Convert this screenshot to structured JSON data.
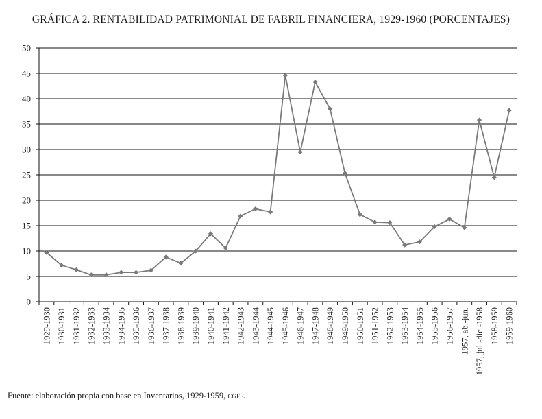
{
  "chart_data": {
    "type": "line",
    "title": "GRÁFICA 2. RENTABILIDAD PATRIMONIAL DE FABRIL FINANCIERA, 1929-1960 (PORCENTAJES)",
    "xlabel": "",
    "ylabel": "",
    "ylim": [
      0,
      50
    ],
    "yticks": [
      0,
      5,
      10,
      15,
      20,
      25,
      30,
      35,
      40,
      45,
      50
    ],
    "grid": true,
    "legend": "none",
    "series_color": "#7a7a7a",
    "categories": [
      "1929-1930",
      "1930-1931",
      "1931-1932",
      "1932-1933",
      "1933-1934",
      "1934-1935",
      "1935-1936",
      "1936-1937",
      "1937-1938",
      "1938-1939",
      "1939-1940",
      "1940-1941",
      "1941-1942",
      "1942-1943",
      "1943-1944",
      "1944-1945",
      "1945-1946",
      "1946-1947",
      "1947-1948",
      "1948-1949",
      "1949-1950",
      "1950-1951",
      "1951-1952",
      "1952-1953",
      "1953-1954",
      "1954-1955",
      "1955-1956",
      "1956-1957",
      "1957, ab.-jun.",
      "1957, jul.-dic.-1958",
      "1958-1959",
      "1959-1960"
    ],
    "values": [
      9.7,
      7.2,
      6.3,
      5.3,
      5.3,
      5.8,
      5.8,
      6.2,
      8.8,
      7.6,
      10.0,
      13.4,
      10.6,
      16.9,
      18.3,
      17.7,
      44.6,
      29.5,
      43.3,
      38.0,
      25.3,
      17.2,
      15.7,
      15.6,
      11.2,
      11.8,
      14.8,
      16.3,
      14.6,
      35.8,
      24.5,
      37.7
    ]
  },
  "source": {
    "text": "Fuente: elaboración propia con base en Inventarios, 1929-1959,",
    "org": "cgff."
  }
}
